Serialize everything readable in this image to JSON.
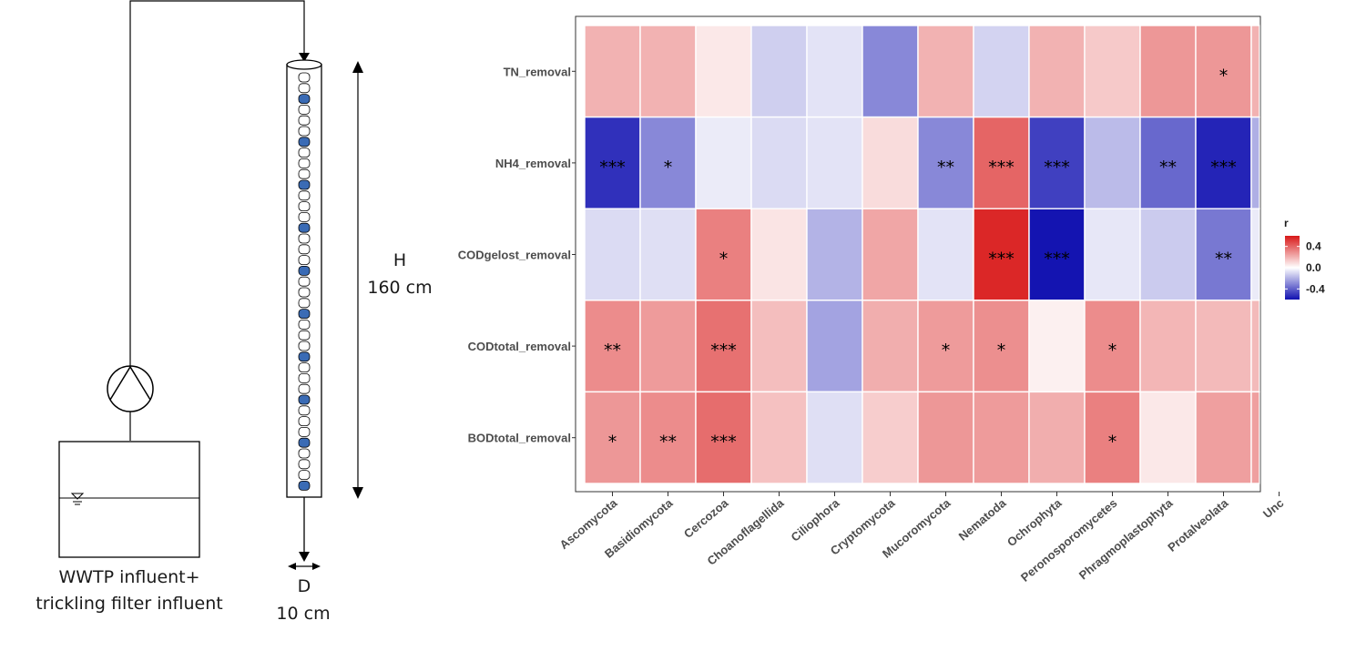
{
  "schematic": {
    "h_label": "H",
    "h_value": "160 cm",
    "d_label": "D",
    "d_value": "10 cm",
    "tank_label_line1": "WWTP influent+",
    "tank_label_line2": "trickling filter influent",
    "packing_fill_color": "#3a6bb5"
  },
  "chart_data": {
    "type": "heatmap",
    "rows": [
      "TN_removal",
      "NH4_removal",
      "CODgelost_removal",
      "CODtotal_removal",
      "BODtotal_removal"
    ],
    "columns": [
      "Ascomycota",
      "Basidiomycota",
      "Cercozoa",
      "Choanoflagellida",
      "Ciliophora",
      "Cryptomycota",
      "Mucoromycota",
      "Nematoda",
      "Ochrophyta",
      "Peronosporomycetes",
      "Phragmoplastophyta",
      "Protalveolata",
      "Unc"
    ],
    "values": [
      [
        0.2,
        0.2,
        0.06,
        -0.12,
        -0.07,
        -0.3,
        0.2,
        -0.11,
        0.2,
        0.14,
        0.27,
        0.27,
        0.2
      ],
      [
        -0.52,
        -0.3,
        -0.05,
        -0.09,
        -0.07,
        0.09,
        -0.3,
        0.4,
        -0.48,
        -0.17,
        -0.38,
        -0.55,
        -0.2
      ],
      [
        -0.09,
        -0.08,
        0.33,
        0.07,
        -0.19,
        0.23,
        -0.07,
        0.56,
        -0.59,
        -0.06,
        -0.13,
        -0.34,
        -0.05
      ],
      [
        0.3,
        0.26,
        0.37,
        0.17,
        -0.23,
        0.21,
        0.26,
        0.29,
        0.04,
        0.3,
        0.19,
        0.18,
        0.18
      ],
      [
        0.27,
        0.3,
        0.38,
        0.16,
        -0.08,
        0.13,
        0.27,
        0.26,
        0.21,
        0.33,
        0.06,
        0.25,
        0.25
      ]
    ],
    "significance": [
      [
        "",
        "",
        "",
        "",
        "",
        "",
        "",
        "",
        "",
        "",
        "",
        "*",
        ""
      ],
      [
        "***",
        "*",
        "",
        "",
        "",
        "",
        "**",
        "***",
        "***",
        "",
        "**",
        "***",
        ""
      ],
      [
        "",
        "",
        "*",
        "",
        "",
        "",
        "",
        "***",
        "***",
        "",
        "",
        "**",
        ""
      ],
      [
        "**",
        "",
        "***",
        "",
        "",
        "",
        "*",
        "*",
        "",
        "*",
        "",
        "",
        ""
      ],
      [
        "*",
        "**",
        "***",
        "",
        "",
        "",
        "",
        "",
        "",
        "*",
        "",
        "",
        ""
      ]
    ],
    "legend_title": "r",
    "legend_ticks": [
      0.4,
      0.0,
      -0.4
    ],
    "legend_tick_labels": [
      "0.4",
      "0.0",
      "-0.4"
    ],
    "scale_limits": [
      -0.6,
      0.6
    ],
    "colors": {
      "low": "#1010b0",
      "mid": "#ffffff",
      "high": "#d81818"
    },
    "cell_gap_color": "#ffffff",
    "panel_border_color": "#333333"
  }
}
